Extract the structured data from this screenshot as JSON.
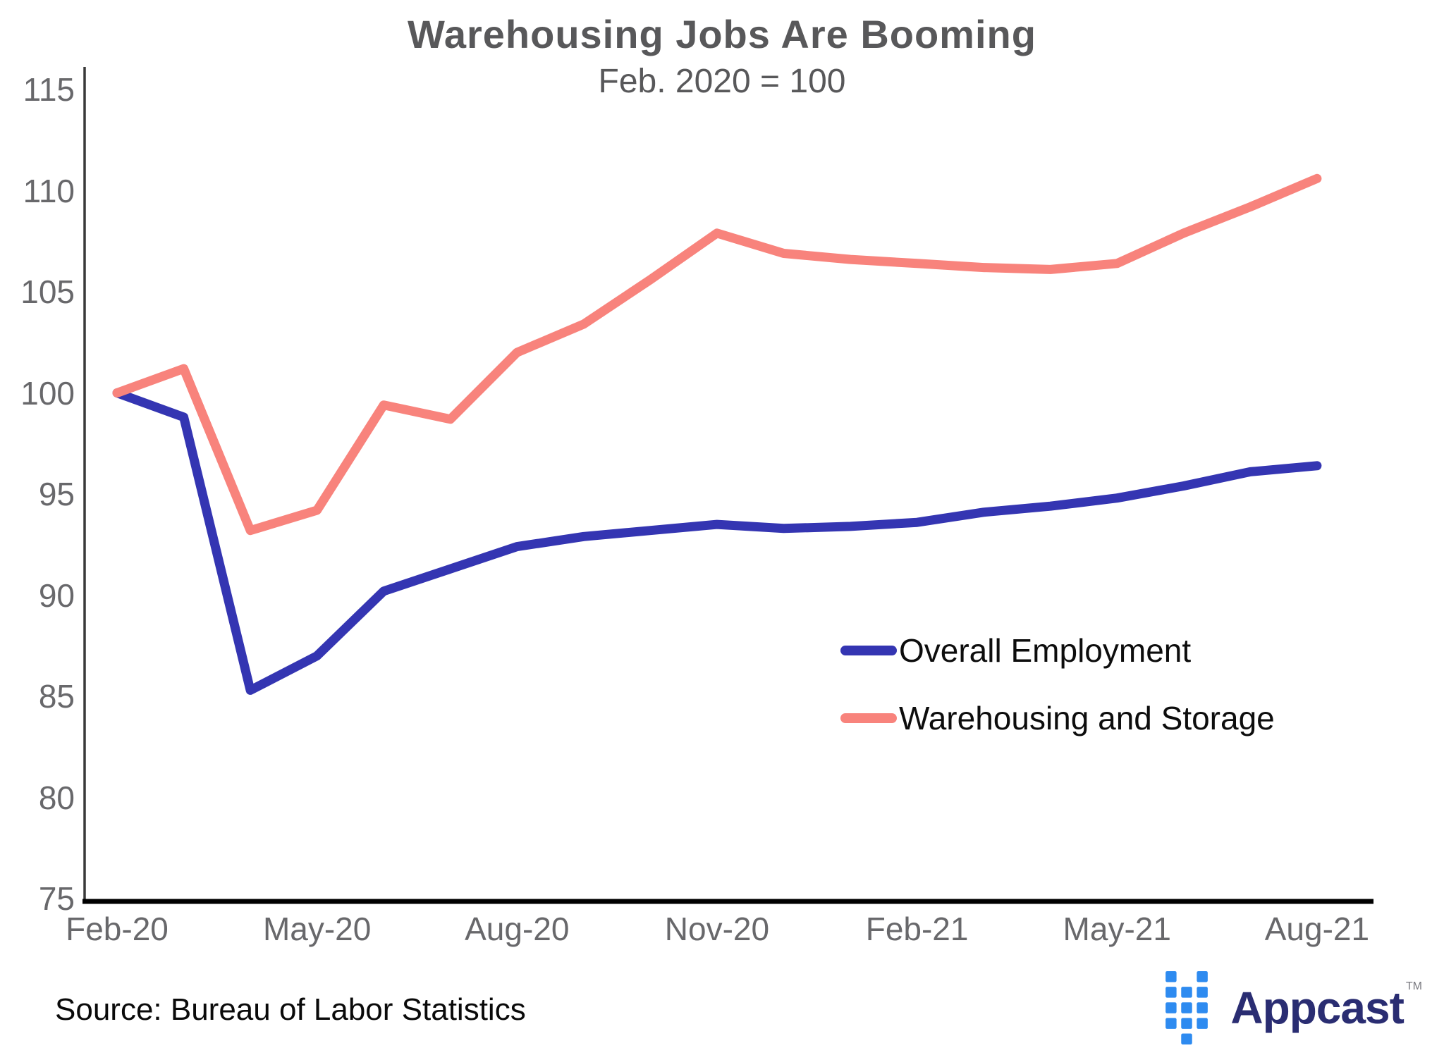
{
  "title": "Warehousing Jobs Are Booming",
  "subtitle": "Feb. 2020 = 100",
  "source": "Source: Bureau of Labor Statistics",
  "logo": {
    "text": "Appcast",
    "tm": "TM",
    "dot_color": "#2e8bf0",
    "text_color": "#2a2d72"
  },
  "chart_data": {
    "type": "line",
    "x": [
      "Feb-20",
      "Mar-20",
      "Apr-20",
      "May-20",
      "Jun-20",
      "Jul-20",
      "Aug-20",
      "Sep-20",
      "Oct-20",
      "Nov-20",
      "Dec-20",
      "Jan-21",
      "Feb-21",
      "Mar-21",
      "Apr-21",
      "May-21",
      "Jun-21",
      "Jul-21",
      "Aug-21"
    ],
    "xticks": [
      "Feb-20",
      "May-20",
      "Aug-20",
      "Nov-20",
      "Feb-21",
      "May-21",
      "Aug-21"
    ],
    "xtick_positions": [
      0,
      3,
      6,
      9,
      12,
      15,
      18
    ],
    "yticks": [
      115,
      110,
      105,
      100,
      95,
      90,
      85,
      80,
      75
    ],
    "ylim": [
      75,
      115
    ],
    "grid": false,
    "legend_position": "middle-right",
    "axis_color": "#3a3a3a",
    "x_axis_color": "#000000",
    "series": [
      {
        "name": "Overall Employment",
        "color": "#3435b2",
        "values": [
          100,
          98.8,
          85.3,
          87.0,
          90.2,
          91.3,
          92.4,
          92.9,
          93.2,
          93.5,
          93.3,
          93.4,
          93.6,
          94.1,
          94.4,
          94.8,
          95.4,
          96.1,
          96.4
        ]
      },
      {
        "name": "Warehousing and Storage",
        "color": "#f8837c",
        "values": [
          100,
          101.2,
          93.2,
          94.2,
          99.4,
          98.7,
          102.0,
          103.4,
          105.6,
          107.9,
          106.9,
          106.6,
          106.4,
          106.2,
          106.1,
          106.4,
          107.9,
          109.2,
          110.6
        ]
      }
    ]
  }
}
